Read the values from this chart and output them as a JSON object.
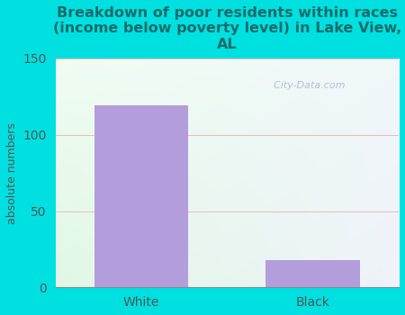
{
  "title": "Breakdown of poor residents within races\n(income below poverty level) in Lake View,\nAL",
  "categories": [
    "White",
    "Black"
  ],
  "values": [
    119,
    18
  ],
  "bar_color": "#b39ddb",
  "ylabel": "absolute numbers",
  "ylim": [
    0,
    150
  ],
  "yticks": [
    0,
    50,
    100,
    150
  ],
  "background_outer": "#00e0e0",
  "bg_topleft": "#e8f5e9",
  "bg_topright": "#f0f4f8",
  "bg_bottomleft": "#dcedc8",
  "bg_bottomright": "#e8f0f8",
  "title_color": "#1a6b6b",
  "tick_color": "#555555",
  "ylabel_color": "#555555",
  "watermark": "  City-Data.com",
  "grid_color": "#e8b0b0",
  "title_fontsize": 11.5,
  "tick_fontsize": 10,
  "ylabel_fontsize": 9
}
